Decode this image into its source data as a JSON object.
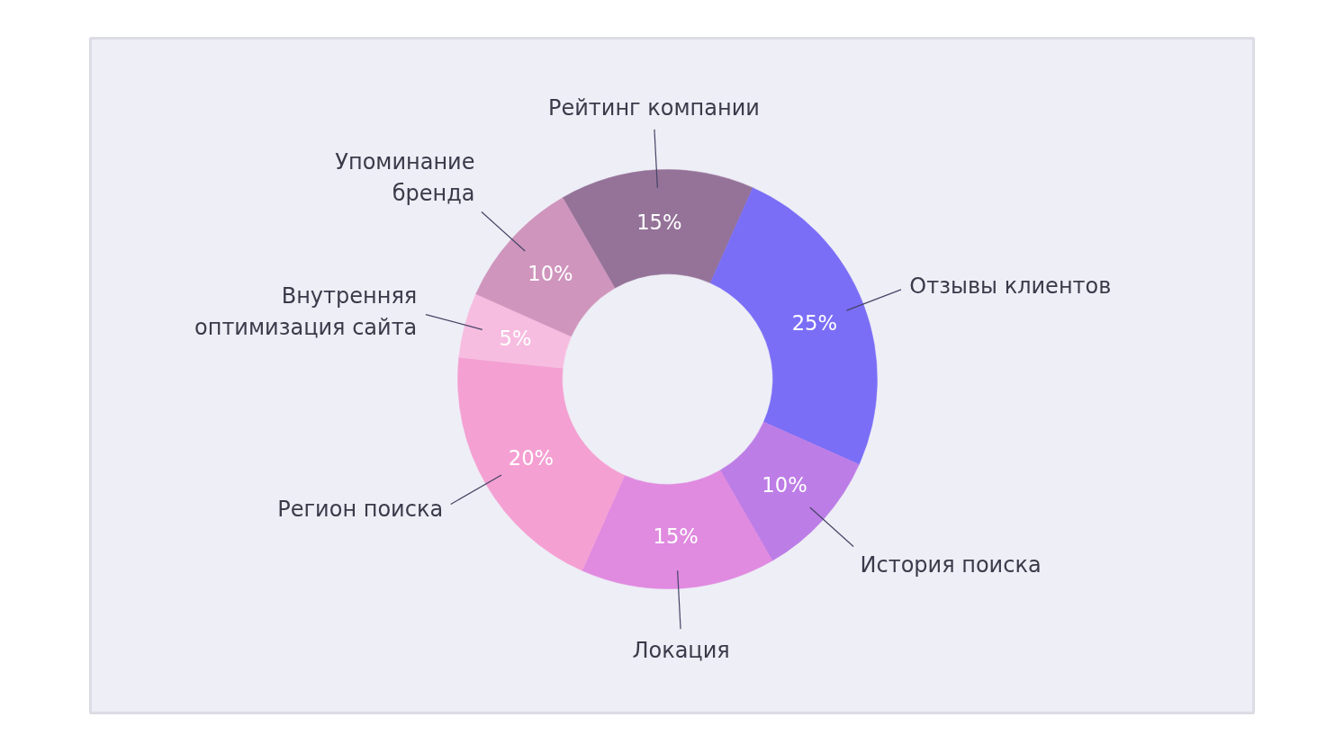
{
  "chart_data": {
    "type": "donut",
    "categories": [
      "Рейтинг компании",
      "Отзывы клиентов",
      "История поиска",
      "Локация",
      "Регион поиска",
      "Внутренняя оптимизация сайта",
      "Упоминание бренда"
    ],
    "values": [
      15,
      25,
      10,
      15,
      20,
      5,
      10
    ],
    "value_labels": [
      "15%",
      "25%",
      "10%",
      "15%",
      "20%",
      "5%",
      "10%"
    ],
    "colors": [
      "#957399",
      "#7b6ef6",
      "#bd7de6",
      "#e08ae0",
      "#f4a0d2",
      "#f7bde0",
      "#cf95bd"
    ]
  }
}
